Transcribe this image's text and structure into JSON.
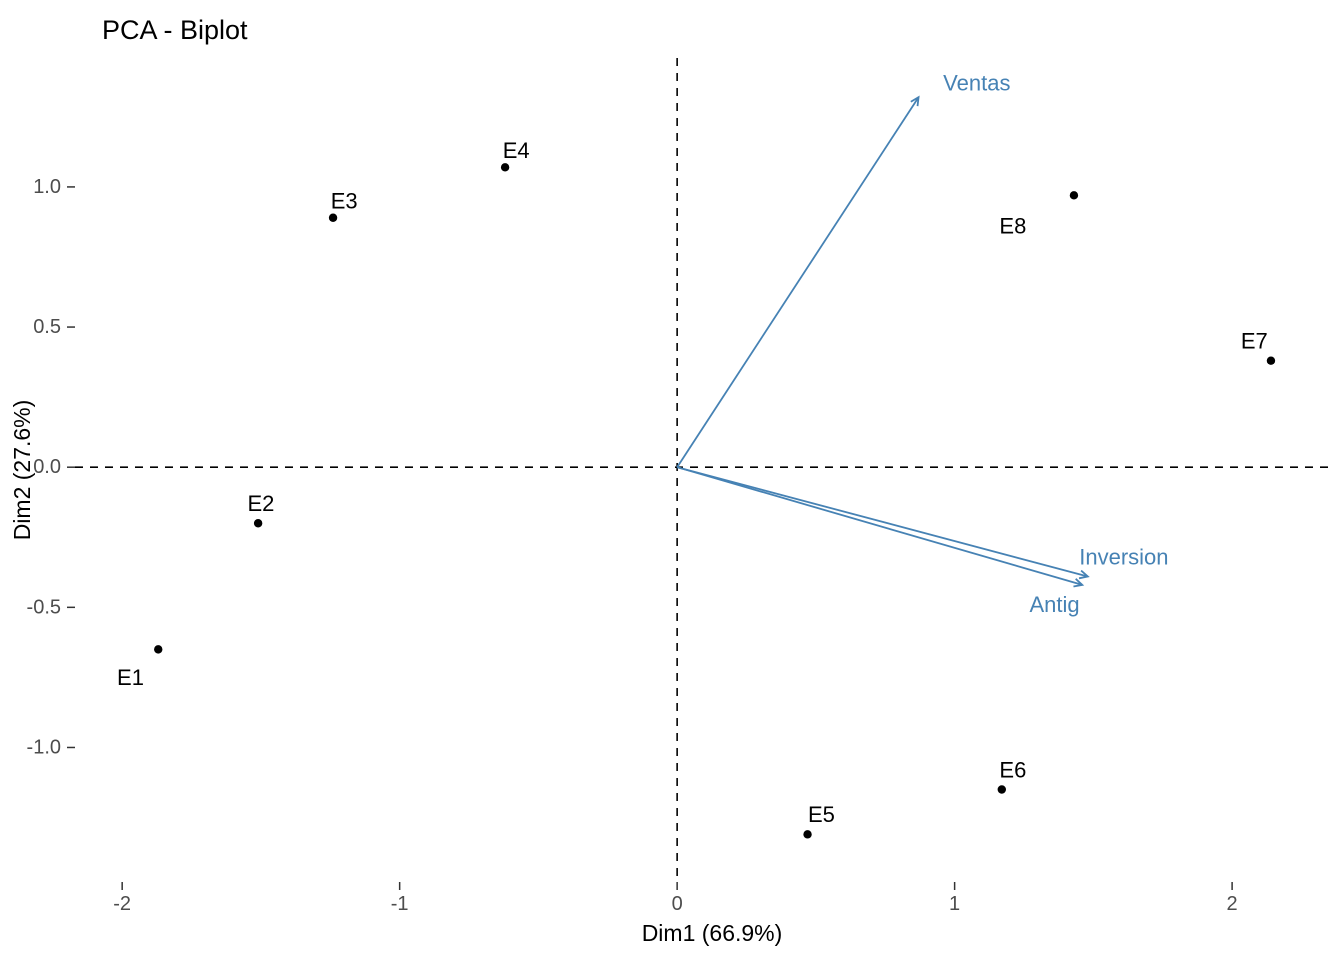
{
  "title": "PCA - Biplot",
  "chart_data": {
    "type": "scatter",
    "title": "PCA - Biplot",
    "xlabel": "Dim1 (66.9%)",
    "ylabel": "Dim2 (27.6%)",
    "xlim": [
      -2.17,
      2.36
    ],
    "ylim": [
      -1.48,
      1.46
    ],
    "x_ticks": [
      "-2",
      "-1",
      "0",
      "1",
      "2"
    ],
    "x_tick_values": [
      -2,
      -1,
      0,
      1,
      2
    ],
    "y_ticks": [
      "-1.0",
      "-0.5",
      "0.0",
      "0.5",
      "1.0"
    ],
    "y_tick_values": [
      -1.0,
      -0.5,
      0.0,
      0.5,
      1.0
    ],
    "grid": false,
    "zero_lines": "dashed",
    "legend": "none",
    "points": [
      {
        "label": "E1",
        "x": -1.87,
        "y": -0.65,
        "lx": -1.97,
        "ly": -0.75
      },
      {
        "label": "E2",
        "x": -1.51,
        "y": -0.2,
        "lx": -1.5,
        "ly": -0.13
      },
      {
        "label": "E3",
        "x": -1.24,
        "y": 0.89,
        "lx": -1.2,
        "ly": 0.95
      },
      {
        "label": "E4",
        "x": -0.62,
        "y": 1.07,
        "lx": -0.58,
        "ly": 1.13
      },
      {
        "label": "E5",
        "x": 0.47,
        "y": -1.31,
        "lx": 0.52,
        "ly": -1.24
      },
      {
        "label": "E6",
        "x": 1.17,
        "y": -1.15,
        "lx": 1.21,
        "ly": -1.08
      },
      {
        "label": "E7",
        "x": 2.14,
        "y": 0.38,
        "lx": 2.08,
        "ly": 0.45
      },
      {
        "label": "E8",
        "x": 1.43,
        "y": 0.97,
        "lx": 1.21,
        "ly": 0.86
      }
    ],
    "arrows": [
      {
        "label": "Ventas",
        "x": 0.87,
        "y": 1.32,
        "lx": 1.08,
        "ly": 1.37
      },
      {
        "label": "Inversion",
        "x": 1.48,
        "y": -0.39,
        "lx": 1.61,
        "ly": -0.32
      },
      {
        "label": "Antig",
        "x": 1.46,
        "y": -0.42,
        "lx": 1.36,
        "ly": -0.49
      }
    ],
    "colors": {
      "point": "#000000",
      "arrow": "#4682B4",
      "tick_label": "#4d4d4d",
      "tick_mark": "#333333",
      "axis_title": "#000000",
      "zero_line": "#000000",
      "background": "#ffffff"
    }
  }
}
